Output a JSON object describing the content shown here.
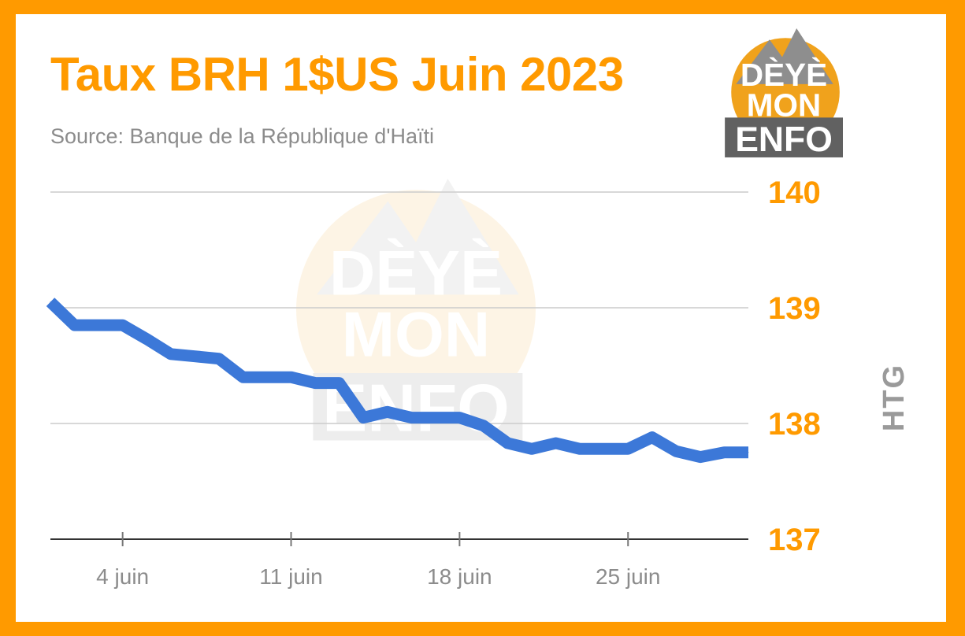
{
  "frame": {
    "border_color": "#ff9a00",
    "card_color": "#ffffff"
  },
  "header": {
    "title": "Taux BRH 1$US Juin 2023",
    "subtitle": "Source: Banque de la République d'Haïti"
  },
  "logo": {
    "line1": "DÈYÈ",
    "line2": "MON",
    "line3": "ENFO",
    "colors": {
      "circle": "#f0a21c",
      "mountain": "#8e8e8e",
      "banner": "#616161"
    }
  },
  "chart_data": {
    "type": "line",
    "ylabel": "HTG",
    "xlabel": "",
    "y_axis_position": "right",
    "ylim": [
      137,
      140
    ],
    "yticks": [
      "140",
      "139",
      "138",
      "137"
    ],
    "xlim": [
      1,
      30
    ],
    "xticks": [
      {
        "day": 4,
        "label": "4 juin"
      },
      {
        "day": 11,
        "label": "11 juin"
      },
      {
        "day": 18,
        "label": "18 juin"
      },
      {
        "day": 25,
        "label": "25 juin"
      }
    ],
    "grid": true,
    "series": [
      {
        "color": "#3c78d8",
        "x": [
          1,
          2,
          3,
          4,
          5,
          6,
          7,
          8,
          9,
          10,
          11,
          12,
          13,
          14,
          15,
          16,
          17,
          18,
          19,
          20,
          21,
          22,
          23,
          24,
          25,
          26,
          27,
          28,
          29,
          30
        ],
        "y": [
          139.05,
          138.85,
          138.85,
          138.85,
          138.73,
          138.6,
          138.58,
          138.56,
          138.4,
          138.4,
          138.4,
          138.35,
          138.35,
          138.05,
          138.1,
          138.05,
          138.05,
          138.05,
          137.98,
          137.83,
          137.78,
          137.83,
          137.78,
          137.78,
          137.78,
          137.88,
          137.76,
          137.71,
          137.75,
          137.75
        ]
      }
    ]
  }
}
